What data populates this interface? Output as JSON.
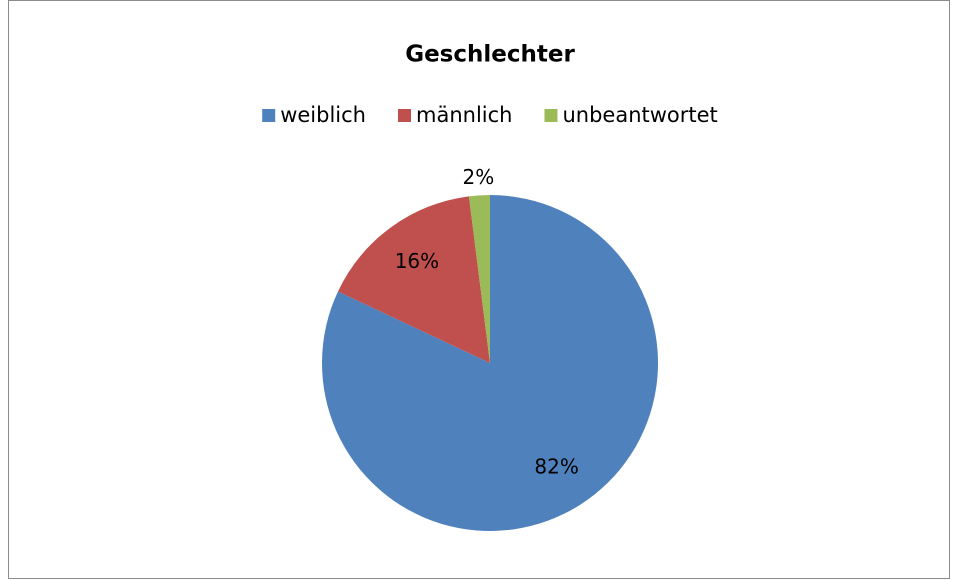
{
  "chart_data": {
    "type": "pie",
    "title": "Geschlechter",
    "categories": [
      "weiblich",
      "männlich",
      "unbeantwortet"
    ],
    "values": [
      82,
      16,
      2
    ],
    "value_labels": [
      "82%",
      "16%",
      "2%"
    ],
    "colors": [
      "#4f81bd",
      "#c0504d",
      "#9bbb59"
    ],
    "legend": "top"
  }
}
